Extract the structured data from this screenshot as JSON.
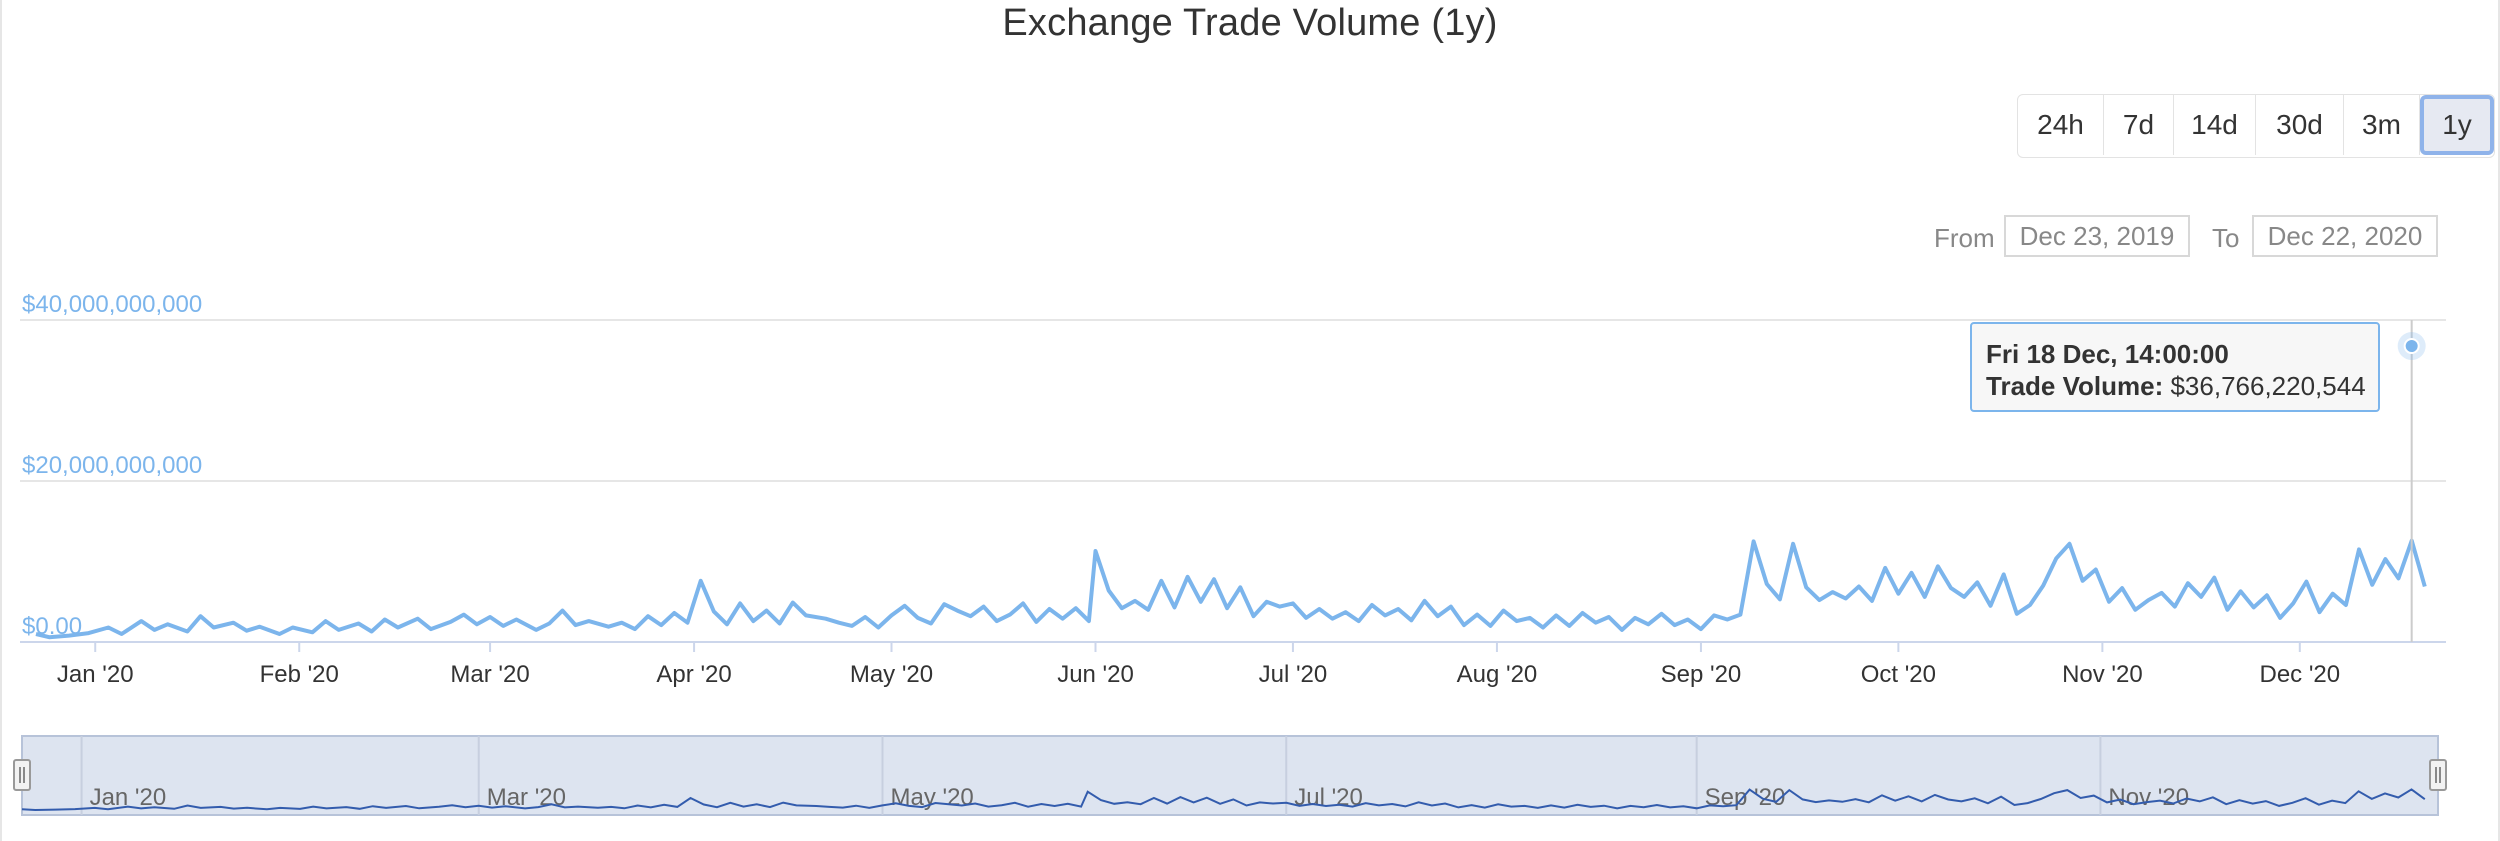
{
  "title": "Exchange Trade Volume (1y)",
  "range_selector": {
    "buttons": [
      {
        "label": "24h",
        "selected": false
      },
      {
        "label": "7d",
        "selected": false
      },
      {
        "label": "14d",
        "selected": false
      },
      {
        "label": "30d",
        "selected": false
      },
      {
        "label": "3m",
        "selected": false
      },
      {
        "label": "1y",
        "selected": true
      }
    ],
    "from_label": "From",
    "from_value": "Dec 23, 2019",
    "to_label": "To",
    "to_value": "Dec 22, 2020"
  },
  "tooltip": {
    "date": "Fri 18 Dec, 14:00:00",
    "series_label": "Trade Volume:",
    "value_text": "$36,766,220,544"
  },
  "navigator": {
    "tick_labels": [
      "Jan '20",
      "Mar '20",
      "May '20",
      "Jul '20",
      "Sep '20",
      "Nov '20"
    ]
  },
  "colors": {
    "line": "#7cb5ec",
    "navigator_line": "#335cad",
    "navigator_fill": "#dde4f0",
    "grid": "#e6e6e6"
  },
  "chart_data": {
    "type": "line",
    "title": "Exchange Trade Volume (1y)",
    "xlabel": "",
    "ylabel": "",
    "x_range": [
      "2019-12-23",
      "2020-12-22"
    ],
    "ylim": [
      0,
      40000000000
    ],
    "y_ticks": [
      0,
      20000000000,
      40000000000
    ],
    "y_tick_labels": [
      "$0.00",
      "$20,000,000,000",
      "$40,000,000,000"
    ],
    "x_tick_labels": [
      "Jan '20",
      "Feb '20",
      "Mar '20",
      "Apr '20",
      "May '20",
      "Jun '20",
      "Jul '20",
      "Aug '20",
      "Sep '20",
      "Oct '20",
      "Nov '20",
      "Dec '20"
    ],
    "grid": true,
    "legend": false,
    "series": [
      {
        "name": "Trade Volume",
        "points": [
          [
            "2019-12-23",
            1.0
          ],
          [
            "2019-12-25",
            0.6
          ],
          [
            "2019-12-28",
            0.8
          ],
          [
            "2019-12-31",
            1.1
          ],
          [
            "2020-01-03",
            1.8
          ],
          [
            "2020-01-05",
            1.0
          ],
          [
            "2020-01-08",
            2.6
          ],
          [
            "2020-01-10",
            1.5
          ],
          [
            "2020-01-12",
            2.2
          ],
          [
            "2020-01-15",
            1.3
          ],
          [
            "2020-01-17",
            3.2
          ],
          [
            "2020-01-19",
            1.8
          ],
          [
            "2020-01-22",
            2.4
          ],
          [
            "2020-01-24",
            1.4
          ],
          [
            "2020-01-26",
            1.9
          ],
          [
            "2020-01-29",
            1.0
          ],
          [
            "2020-01-31",
            1.8
          ],
          [
            "2020-02-03",
            1.2
          ],
          [
            "2020-02-05",
            2.6
          ],
          [
            "2020-02-07",
            1.5
          ],
          [
            "2020-02-10",
            2.3
          ],
          [
            "2020-02-12",
            1.3
          ],
          [
            "2020-02-14",
            2.8
          ],
          [
            "2020-02-16",
            1.8
          ],
          [
            "2020-02-19",
            2.9
          ],
          [
            "2020-02-21",
            1.6
          ],
          [
            "2020-02-24",
            2.5
          ],
          [
            "2020-02-26",
            3.4
          ],
          [
            "2020-02-28",
            2.2
          ],
          [
            "2020-03-01",
            3.1
          ],
          [
            "2020-03-03",
            2.0
          ],
          [
            "2020-03-05",
            2.8
          ],
          [
            "2020-03-08",
            1.5
          ],
          [
            "2020-03-10",
            2.3
          ],
          [
            "2020-03-12",
            3.9
          ],
          [
            "2020-03-14",
            2.1
          ],
          [
            "2020-03-16",
            2.6
          ],
          [
            "2020-03-19",
            1.9
          ],
          [
            "2020-03-21",
            2.4
          ],
          [
            "2020-03-23",
            1.6
          ],
          [
            "2020-03-25",
            3.2
          ],
          [
            "2020-03-27",
            2.1
          ],
          [
            "2020-03-29",
            3.6
          ],
          [
            "2020-03-31",
            2.4
          ],
          [
            "2020-04-02",
            7.6
          ],
          [
            "2020-04-04",
            3.8
          ],
          [
            "2020-04-06",
            2.2
          ],
          [
            "2020-04-08",
            4.8
          ],
          [
            "2020-04-10",
            2.6
          ],
          [
            "2020-04-12",
            3.9
          ],
          [
            "2020-04-14",
            2.3
          ],
          [
            "2020-04-16",
            4.9
          ],
          [
            "2020-04-18",
            3.3
          ],
          [
            "2020-04-21",
            2.9
          ],
          [
            "2020-04-23",
            2.4
          ],
          [
            "2020-04-25",
            2.0
          ],
          [
            "2020-04-27",
            3.1
          ],
          [
            "2020-04-29",
            1.8
          ],
          [
            "2020-05-01",
            3.3
          ],
          [
            "2020-05-03",
            4.5
          ],
          [
            "2020-05-05",
            3.0
          ],
          [
            "2020-05-07",
            2.3
          ],
          [
            "2020-05-09",
            4.7
          ],
          [
            "2020-05-11",
            3.9
          ],
          [
            "2020-05-13",
            3.2
          ],
          [
            "2020-05-15",
            4.4
          ],
          [
            "2020-05-17",
            2.6
          ],
          [
            "2020-05-19",
            3.4
          ],
          [
            "2020-05-21",
            4.8
          ],
          [
            "2020-05-23",
            2.5
          ],
          [
            "2020-05-25",
            4.1
          ],
          [
            "2020-05-27",
            2.9
          ],
          [
            "2020-05-29",
            4.2
          ],
          [
            "2020-05-31",
            2.6
          ],
          [
            "2020-06-01",
            11.3
          ],
          [
            "2020-06-03",
            6.4
          ],
          [
            "2020-06-05",
            4.2
          ],
          [
            "2020-06-07",
            5.1
          ],
          [
            "2020-06-09",
            4.0
          ],
          [
            "2020-06-11",
            7.6
          ],
          [
            "2020-06-13",
            4.3
          ],
          [
            "2020-06-15",
            8.1
          ],
          [
            "2020-06-17",
            5.0
          ],
          [
            "2020-06-19",
            7.8
          ],
          [
            "2020-06-21",
            4.2
          ],
          [
            "2020-06-23",
            6.8
          ],
          [
            "2020-06-25",
            3.2
          ],
          [
            "2020-06-27",
            5.0
          ],
          [
            "2020-06-29",
            4.4
          ],
          [
            "2020-07-01",
            4.8
          ],
          [
            "2020-07-03",
            3.0
          ],
          [
            "2020-07-05",
            4.1
          ],
          [
            "2020-07-07",
            2.9
          ],
          [
            "2020-07-09",
            3.7
          ],
          [
            "2020-07-11",
            2.6
          ],
          [
            "2020-07-13",
            4.6
          ],
          [
            "2020-07-15",
            3.3
          ],
          [
            "2020-07-17",
            4.1
          ],
          [
            "2020-07-19",
            2.7
          ],
          [
            "2020-07-21",
            5.1
          ],
          [
            "2020-07-23",
            3.2
          ],
          [
            "2020-07-25",
            4.4
          ],
          [
            "2020-07-27",
            2.1
          ],
          [
            "2020-07-29",
            3.4
          ],
          [
            "2020-07-31",
            2.0
          ],
          [
            "2020-08-02",
            3.9
          ],
          [
            "2020-08-04",
            2.6
          ],
          [
            "2020-08-06",
            3.0
          ],
          [
            "2020-08-08",
            1.8
          ],
          [
            "2020-08-10",
            3.3
          ],
          [
            "2020-08-12",
            2.0
          ],
          [
            "2020-08-14",
            3.6
          ],
          [
            "2020-08-16",
            2.4
          ],
          [
            "2020-08-18",
            3.1
          ],
          [
            "2020-08-20",
            1.5
          ],
          [
            "2020-08-22",
            3.0
          ],
          [
            "2020-08-24",
            2.2
          ],
          [
            "2020-08-26",
            3.5
          ],
          [
            "2020-08-28",
            2.1
          ],
          [
            "2020-08-30",
            2.8
          ],
          [
            "2020-09-01",
            1.6
          ],
          [
            "2020-09-03",
            3.3
          ],
          [
            "2020-09-05",
            2.8
          ],
          [
            "2020-09-07",
            3.4
          ],
          [
            "2020-09-09",
            12.5
          ],
          [
            "2020-09-11",
            7.2
          ],
          [
            "2020-09-13",
            5.3
          ],
          [
            "2020-09-15",
            12.2
          ],
          [
            "2020-09-17",
            6.8
          ],
          [
            "2020-09-19",
            5.2
          ],
          [
            "2020-09-21",
            6.2
          ],
          [
            "2020-09-23",
            5.4
          ],
          [
            "2020-09-25",
            6.9
          ],
          [
            "2020-09-27",
            5.1
          ],
          [
            "2020-09-29",
            9.2
          ],
          [
            "2020-10-01",
            6.0
          ],
          [
            "2020-10-03",
            8.6
          ],
          [
            "2020-10-05",
            5.6
          ],
          [
            "2020-10-07",
            9.4
          ],
          [
            "2020-10-09",
            6.7
          ],
          [
            "2020-10-11",
            5.6
          ],
          [
            "2020-10-13",
            7.4
          ],
          [
            "2020-10-15",
            4.5
          ],
          [
            "2020-10-17",
            8.4
          ],
          [
            "2020-10-19",
            3.5
          ],
          [
            "2020-10-21",
            4.6
          ],
          [
            "2020-10-23",
            7.0
          ],
          [
            "2020-10-25",
            10.4
          ],
          [
            "2020-10-27",
            12.2
          ],
          [
            "2020-10-29",
            7.6
          ],
          [
            "2020-10-31",
            9.0
          ],
          [
            "2020-11-02",
            5.0
          ],
          [
            "2020-11-04",
            6.7
          ],
          [
            "2020-11-06",
            4.0
          ],
          [
            "2020-11-08",
            5.2
          ],
          [
            "2020-11-10",
            6.1
          ],
          [
            "2020-11-12",
            4.4
          ],
          [
            "2020-11-14",
            7.3
          ],
          [
            "2020-11-16",
            5.6
          ],
          [
            "2020-11-18",
            8.0
          ],
          [
            "2020-11-20",
            4.0
          ],
          [
            "2020-11-22",
            6.3
          ],
          [
            "2020-11-24",
            4.3
          ],
          [
            "2020-11-26",
            5.8
          ],
          [
            "2020-11-28",
            3.0
          ],
          [
            "2020-11-30",
            4.8
          ],
          [
            "2020-12-02",
            7.5
          ],
          [
            "2020-12-04",
            3.7
          ],
          [
            "2020-12-06",
            6.0
          ],
          [
            "2020-12-08",
            4.6
          ],
          [
            "2020-12-10",
            11.5
          ],
          [
            "2020-12-12",
            7.1
          ],
          [
            "2020-12-14",
            10.3
          ],
          [
            "2020-12-16",
            7.9
          ],
          [
            "2020-12-18",
            12.6
          ],
          [
            "2020-12-20",
            6.9
          ]
        ]
      }
    ]
  }
}
